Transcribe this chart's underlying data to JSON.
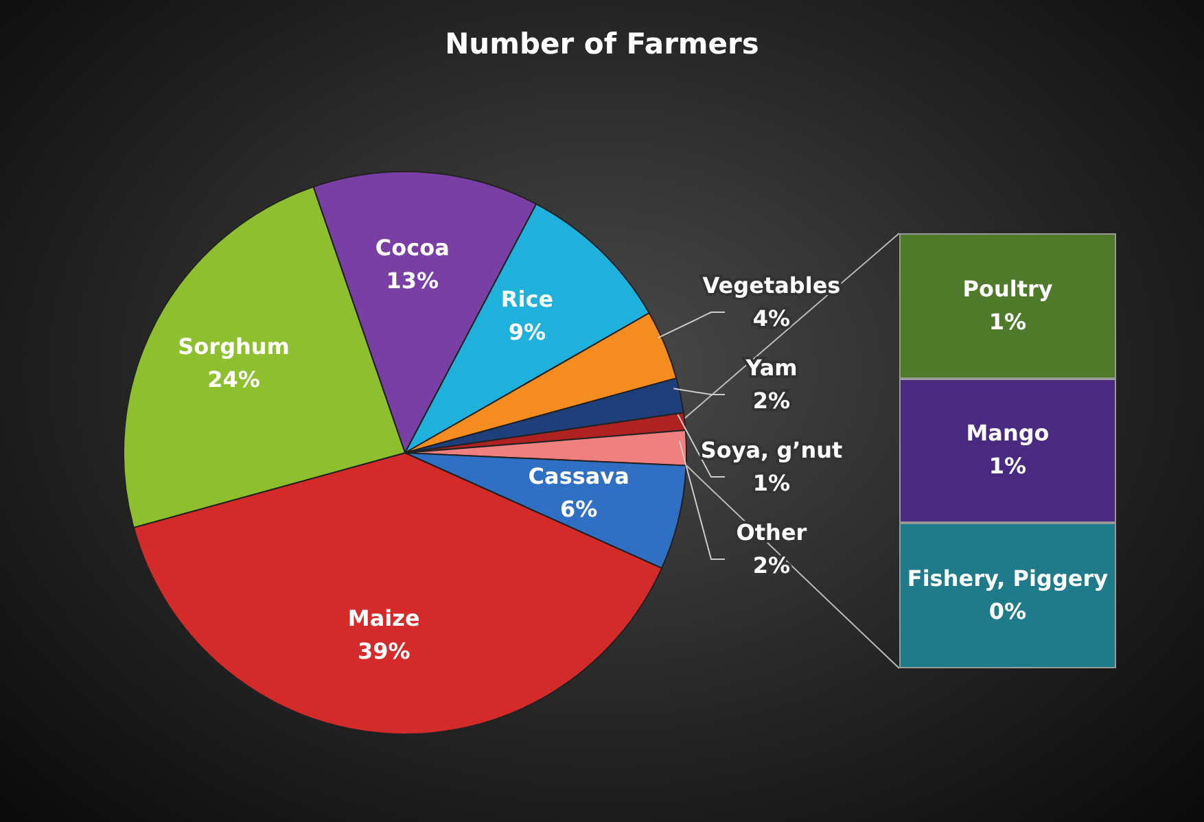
{
  "chart_data": [
    {
      "type": "pie",
      "title": "Number of Farmers",
      "categories": [
        "Cocoa",
        "Rice",
        "Vegetables",
        "Yam",
        "Soya, g’nut",
        "Other",
        "Cassava",
        "Maize",
        "Sorghum"
      ],
      "values": [
        13,
        9,
        4,
        2,
        1,
        2,
        6,
        39,
        24
      ],
      "value_labels": [
        "13%",
        "9%",
        "4%",
        "2%",
        "1%",
        "2%",
        "6%",
        "39%",
        "24%"
      ],
      "colors": [
        "#7a3fa5",
        "#1fb0dc",
        "#f58c1f",
        "#1f3f7a",
        "#b02222",
        "#f08080",
        "#2f6fc4",
        "#d42a2a",
        "#8dbf2e"
      ]
    },
    {
      "type": "other",
      "categories": [
        "Poultry",
        "Mango",
        "Fishery, Piggery"
      ],
      "value_labels": [
        "1%",
        "1%",
        "0%"
      ],
      "colors": [
        "#4f7a2a",
        "#4a2a80",
        "#1f7a8a"
      ]
    }
  ]
}
